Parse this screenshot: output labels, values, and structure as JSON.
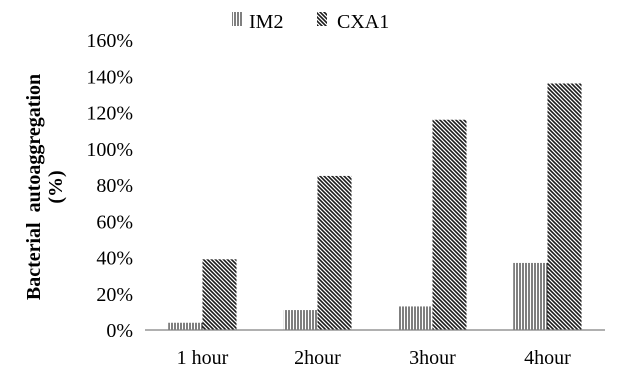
{
  "chart_data": {
    "type": "bar",
    "categories": [
      "1 hour",
      "2hour",
      "3hour",
      "4hour"
    ],
    "series": [
      {
        "name": "IM2",
        "values": [
          4,
          11,
          13,
          37
        ],
        "pattern": "vertical-lines"
      },
      {
        "name": "CXA1",
        "values": [
          39,
          85,
          116,
          136
        ],
        "pattern": "diagonal-lines"
      }
    ],
    "y_tick_labels": [
      "0%",
      "20%",
      "40%",
      "60%",
      "80%",
      "100%",
      "120%",
      "140%",
      "160%"
    ],
    "ylim": [
      0,
      160
    ],
    "ylabel_line1": "Bacterial  autoaggregation",
    "ylabel_line2": "(%)",
    "xlabel": "",
    "title": "",
    "legend_position": "top-center",
    "grid": false
  }
}
